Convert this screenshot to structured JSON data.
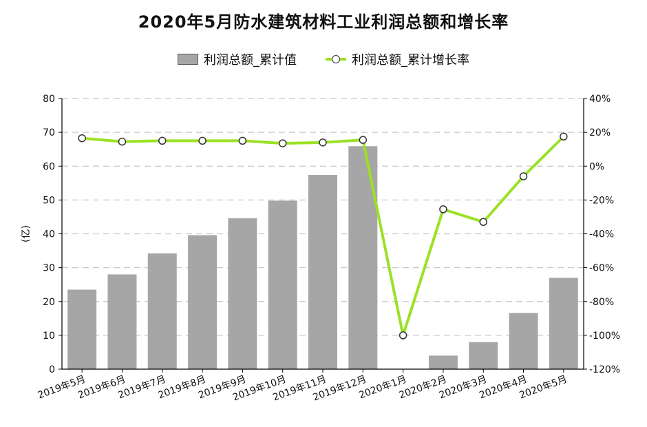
{
  "chart_data": {
    "type": "bar",
    "title": "2020年5月防水建筑材料工业利润总额和增长率",
    "ylabel": "(亿)",
    "ylim": [
      0,
      80
    ],
    "y2lim": [
      -120,
      40
    ],
    "yticks": [
      "0",
      "10",
      "20",
      "30",
      "40",
      "50",
      "60",
      "70",
      "80"
    ],
    "y2ticks": [
      "-120%",
      "-100%",
      "-80%",
      "-60%",
      "-40%",
      "-20%",
      "0%",
      "20%",
      "40%"
    ],
    "grid": true,
    "legend_position": "top",
    "categories": [
      "2019年5月",
      "2019年6月",
      "2019年7月",
      "2019年8月",
      "2019年9月",
      "2019年10月",
      "2019年11月",
      "2019年12月",
      "2020年1月",
      "2020年2月",
      "2020年3月",
      "2020年4月",
      "2020年5月"
    ],
    "series": [
      {
        "name": "利润总额_累计值",
        "type": "bar",
        "axis": "left",
        "color": "#a6a6a6",
        "values": [
          23.5,
          28.0,
          34.2,
          39.6,
          44.6,
          49.8,
          57.4,
          65.9,
          null,
          4.0,
          8.0,
          16.6,
          27.0
        ]
      },
      {
        "name": "利润总额_累计增长率",
        "type": "line",
        "axis": "right",
        "color": "#9be125",
        "values": [
          16.5,
          14.5,
          15.0,
          15.0,
          15.0,
          13.5,
          14.0,
          15.5,
          -100.0,
          -25.5,
          -33.0,
          -6.0,
          17.5
        ]
      }
    ]
  }
}
